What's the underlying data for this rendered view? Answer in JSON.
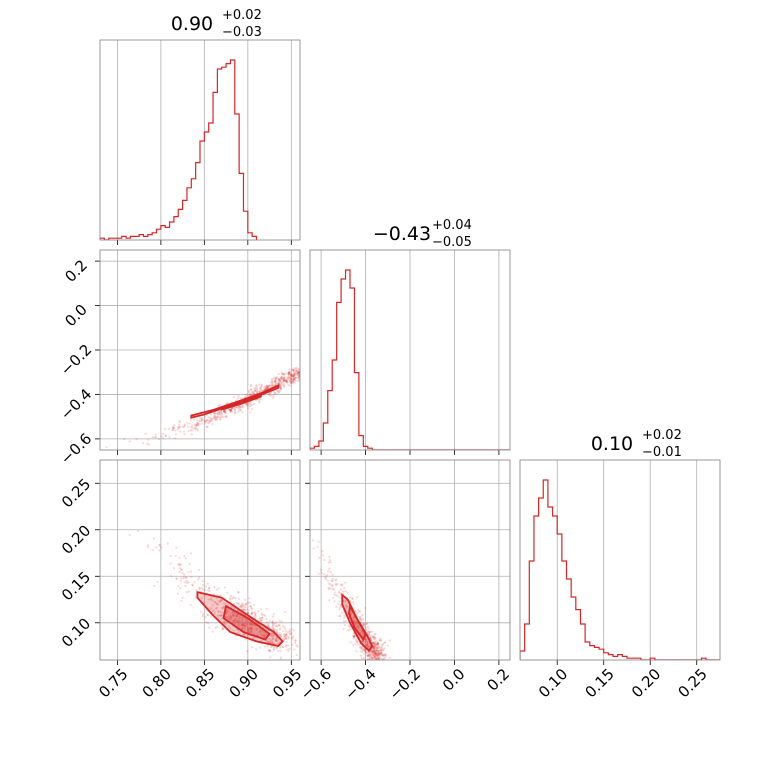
{
  "chart_data": {
    "type": "corner",
    "color": "#d62728",
    "params": [
      {
        "title": {
          "median": "0.90",
          "plus": "+0.02",
          "minus": "−0.03"
        },
        "range": [
          0.73,
          0.96
        ],
        "ticks": [
          {
            "v": 0.75,
            "label": "0.75"
          },
          {
            "v": 0.8,
            "label": "0.80"
          },
          {
            "v": 0.85,
            "label": "0.85"
          },
          {
            "v": 0.9,
            "label": "0.90"
          },
          {
            "v": 0.95,
            "label": "0.95"
          }
        ],
        "hist": {
          "start": 0.73,
          "width": 0.005,
          "counts": [
            1,
            0,
            1,
            1,
            1,
            2,
            1,
            2,
            2,
            3,
            2,
            3,
            4,
            6,
            8,
            7,
            10,
            13,
            17,
            22,
            29,
            34,
            43,
            55,
            60,
            65,
            82,
            95,
            96,
            98,
            100,
            70,
            37,
            16,
            4,
            2
          ]
        }
      },
      {
        "title": {
          "median": "−0.43",
          "plus": "+0.04",
          "minus": "−0.05"
        },
        "range": [
          -0.65,
          0.25
        ],
        "ticks": [
          {
            "v": -0.6,
            "label": "−0.6"
          },
          {
            "v": -0.4,
            "label": "−0.4"
          },
          {
            "v": -0.2,
            "label": "−0.2"
          },
          {
            "v": 0.0,
            "label": "0.0"
          },
          {
            "v": 0.2,
            "label": "0.2"
          }
        ],
        "yticks": [
          {
            "v": -0.6,
            "label": "−0.6"
          },
          {
            "v": -0.4,
            "label": "−0.4"
          },
          {
            "v": -0.2,
            "label": "−0.2"
          },
          {
            "v": 0.0,
            "label": "0.0"
          },
          {
            "v": 0.2,
            "label": "0.2"
          }
        ],
        "hist": {
          "start": -0.65,
          "width": 0.02,
          "counts": [
            1,
            2,
            5,
            15,
            33,
            50,
            82,
            95,
            100,
            90,
            43,
            8,
            2,
            1,
            0,
            0,
            0,
            0,
            0,
            0,
            0,
            0,
            0,
            0,
            0,
            0,
            0,
            0,
            0,
            0,
            0,
            0,
            0,
            0,
            0,
            0,
            0,
            0,
            0,
            0,
            0,
            0,
            0,
            0,
            0
          ]
        }
      },
      {
        "title": {
          "median": "0.10",
          "plus": "+0.02",
          "minus": "−0.01"
        },
        "range": [
          0.06,
          0.275
        ],
        "ticks": [
          {
            "v": 0.1,
            "label": "0.10"
          },
          {
            "v": 0.15,
            "label": "0.15"
          },
          {
            "v": 0.2,
            "label": "0.20"
          },
          {
            "v": 0.25,
            "label": "0.25"
          }
        ],
        "yticks": [
          {
            "v": 0.1,
            "label": "0.10"
          },
          {
            "v": 0.15,
            "label": "0.15"
          },
          {
            "v": 0.2,
            "label": "0.20"
          },
          {
            "v": 0.25,
            "label": "0.25"
          }
        ],
        "hist": {
          "start": 0.06,
          "width": 0.005,
          "counts": [
            5,
            20,
            55,
            80,
            90,
            100,
            85,
            80,
            70,
            55,
            45,
            35,
            28,
            20,
            10,
            8,
            7,
            6,
            4,
            3,
            2,
            3,
            2,
            1,
            1,
            1,
            0,
            0,
            1,
            0,
            0,
            0,
            0,
            0,
            0,
            0,
            0,
            0,
            0,
            1,
            0,
            0,
            0
          ]
        }
      }
    ],
    "scatter_pairs": [
      {
        "x_param": 0,
        "y_param": 1,
        "trend": [
          [
            0.73,
            -0.655
          ],
          [
            0.8,
            -0.585
          ],
          [
            0.85,
            -0.52
          ],
          [
            0.9,
            -0.425
          ],
          [
            0.96,
            -0.3
          ]
        ],
        "spread": [
          0.006,
          0.014
        ]
      },
      {
        "x_param": 0,
        "y_param": 2,
        "trend": [
          [
            0.76,
            0.195
          ],
          [
            0.8,
            0.18
          ],
          [
            0.84,
            0.14
          ],
          [
            0.88,
            0.11
          ],
          [
            0.9,
            0.1
          ],
          [
            0.94,
            0.08
          ]
        ],
        "spread": [
          0.012,
          0.008
        ]
      },
      {
        "x_param": 1,
        "y_param": 2,
        "trend": [
          [
            -0.64,
            0.195
          ],
          [
            -0.58,
            0.16
          ],
          [
            -0.52,
            0.13
          ],
          [
            -0.45,
            0.1
          ],
          [
            -0.38,
            0.075
          ],
          [
            -0.33,
            0.06
          ]
        ],
        "spread": [
          0.02,
          0.008
        ]
      }
    ],
    "contours": [
      {
        "x_param": 0,
        "y_param": 1,
        "outer": [
          [
            0.835,
            -0.495
          ],
          [
            0.86,
            -0.47
          ],
          [
            0.89,
            -0.43
          ],
          [
            0.915,
            -0.395
          ],
          [
            0.935,
            -0.36
          ],
          [
            0.935,
            -0.37
          ],
          [
            0.91,
            -0.41
          ],
          [
            0.88,
            -0.45
          ],
          [
            0.85,
            -0.49
          ],
          [
            0.835,
            -0.505
          ]
        ],
        "inner": [
          [
            0.87,
            -0.46
          ],
          [
            0.89,
            -0.435
          ],
          [
            0.915,
            -0.4
          ],
          [
            0.915,
            -0.41
          ],
          [
            0.89,
            -0.445
          ],
          [
            0.87,
            -0.468
          ]
        ]
      },
      {
        "x_param": 0,
        "y_param": 2,
        "outer": [
          [
            0.842,
            0.133
          ],
          [
            0.87,
            0.127
          ],
          [
            0.905,
            0.105
          ],
          [
            0.93,
            0.09
          ],
          [
            0.94,
            0.08
          ],
          [
            0.935,
            0.075
          ],
          [
            0.91,
            0.08
          ],
          [
            0.88,
            0.09
          ],
          [
            0.86,
            0.108
          ],
          [
            0.842,
            0.127
          ]
        ],
        "inner": [
          [
            0.875,
            0.118
          ],
          [
            0.9,
            0.105
          ],
          [
            0.925,
            0.088
          ],
          [
            0.92,
            0.082
          ],
          [
            0.895,
            0.09
          ],
          [
            0.872,
            0.105
          ]
        ]
      },
      {
        "x_param": 1,
        "y_param": 2,
        "outer": [
          [
            -0.505,
            0.13
          ],
          [
            -0.48,
            0.125
          ],
          [
            -0.44,
            0.105
          ],
          [
            -0.39,
            0.085
          ],
          [
            -0.37,
            0.075
          ],
          [
            -0.385,
            0.07
          ],
          [
            -0.42,
            0.078
          ],
          [
            -0.47,
            0.1
          ],
          [
            -0.505,
            0.12
          ]
        ],
        "inner": [
          [
            -0.47,
            0.118
          ],
          [
            -0.44,
            0.105
          ],
          [
            -0.4,
            0.088
          ],
          [
            -0.41,
            0.082
          ],
          [
            -0.45,
            0.095
          ],
          [
            -0.475,
            0.11
          ]
        ]
      }
    ]
  }
}
